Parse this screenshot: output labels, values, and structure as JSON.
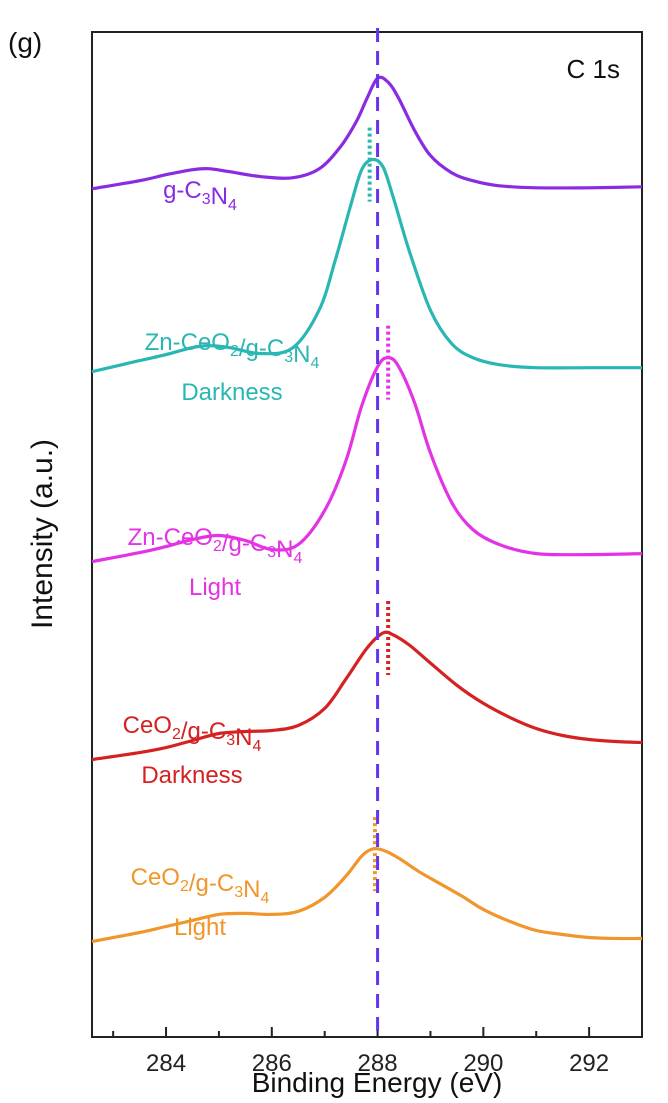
{
  "chart_data": {
    "type": "line",
    "panel_label": "(g)",
    "annotation": "C 1s",
    "xlabel": "Binding Energy (eV)",
    "ylabel": "Intensity (a.u.)",
    "xlim": [
      282.6,
      293.0
    ],
    "ylim": [
      0,
      100
    ],
    "xticks": [
      284,
      286,
      288,
      290,
      292
    ],
    "reference_line": {
      "x": 288.0,
      "color": "#6633ee",
      "style": "dashed"
    },
    "series": [
      {
        "name": "g-C3N4",
        "label_main": "g-C",
        "label_sub1": "3",
        "label_mid": "N",
        "label_sub2": "4",
        "label_line2": "",
        "color": "#8a2be2",
        "peak_marker": 288.0,
        "x": [
          282.6,
          283.5,
          284.0,
          284.5,
          284.8,
          285.2,
          285.8,
          286.4,
          286.9,
          287.3,
          287.6,
          287.8,
          288.0,
          288.2,
          288.4,
          288.7,
          289.0,
          289.4,
          289.8,
          290.3,
          291.0,
          292.0,
          293.0
        ],
        "y": [
          84.4,
          85.2,
          85.8,
          86.3,
          86.4,
          86.1,
          85.6,
          85.5,
          86.4,
          88.6,
          91.1,
          93.4,
          95.4,
          95.0,
          93.4,
          90.2,
          87.7,
          86.0,
          85.2,
          84.7,
          84.5,
          84.5,
          84.6
        ]
      },
      {
        "name": "Zn-CeO2/g-C3N4 Darkness",
        "label_main": "Zn-CeO",
        "label_sub1": "2",
        "label_mid": "/g-C",
        "label_sub2": "3",
        "label_tail": "N",
        "label_sub3": "4",
        "label_line2": "Darkness",
        "color": "#2ab7b3",
        "peak_marker": 287.85,
        "x": [
          282.6,
          283.5,
          284.0,
          284.5,
          284.8,
          285.2,
          285.8,
          286.4,
          286.9,
          287.2,
          287.5,
          287.7,
          287.9,
          288.1,
          288.3,
          288.6,
          289.0,
          289.4,
          289.8,
          290.3,
          291.0,
          292.0,
          293.0
        ],
        "y": [
          66.2,
          67.3,
          67.9,
          68.6,
          68.8,
          68.6,
          68.0,
          68.6,
          72.4,
          77.3,
          82.9,
          86.3,
          87.3,
          86.6,
          83.5,
          78.2,
          72.3,
          69.0,
          67.6,
          66.9,
          66.6,
          66.6,
          66.6
        ]
      },
      {
        "name": "Zn-CeO2/g-C3N4 Light",
        "label_main": "Zn-CeO",
        "label_sub1": "2",
        "label_mid": "/g-C",
        "label_sub2": "3",
        "label_tail": "N",
        "label_sub3": "4",
        "label_line2": "Light",
        "color": "#e433e4",
        "peak_marker": 288.2,
        "x": [
          282.6,
          283.5,
          284.0,
          284.5,
          285.0,
          285.5,
          286.0,
          286.5,
          287.0,
          287.4,
          287.7,
          288.0,
          288.2,
          288.4,
          288.7,
          289.0,
          289.4,
          289.8,
          290.3,
          291.0,
          292.0,
          293.0
        ],
        "y": [
          47.3,
          48.2,
          48.8,
          49.5,
          49.9,
          49.4,
          48.5,
          49.0,
          52.4,
          57.3,
          62.8,
          66.7,
          67.6,
          66.7,
          63.1,
          58.1,
          53.2,
          50.5,
          49.0,
          48.1,
          48.0,
          48.1
        ]
      },
      {
        "name": "CeO2/g-C3N4 Darkness",
        "label_main": "CeO",
        "label_sub1": "2",
        "label_mid": "/g-C",
        "label_sub2": "3",
        "label_tail": "N",
        "label_sub3": "4",
        "label_line2": "Darkness",
        "color": "#d42222",
        "peak_marker": 288.2,
        "x": [
          282.6,
          283.5,
          284.0,
          284.5,
          285.0,
          285.5,
          286.0,
          286.5,
          287.0,
          287.4,
          287.8,
          288.1,
          288.3,
          288.6,
          289.0,
          289.5,
          290.0,
          290.5,
          291.0,
          291.5,
          292.0,
          292.5,
          293.0
        ],
        "y": [
          27.6,
          28.3,
          28.8,
          29.5,
          30.2,
          30.4,
          30.5,
          31.0,
          32.7,
          35.6,
          38.7,
          40.2,
          40.0,
          39.0,
          37.2,
          35.0,
          33.2,
          31.8,
          30.7,
          30.0,
          29.6,
          29.4,
          29.3
        ]
      },
      {
        "name": "CeO2/g-C3N4 Light",
        "label_main": "CeO",
        "label_sub1": "2",
        "label_mid": "/g-C",
        "label_sub2": "3",
        "label_tail": "N",
        "label_sub3": "4",
        "label_line2": "Light",
        "color": "#f0962a",
        "peak_marker": 287.95,
        "x": [
          282.6,
          283.5,
          284.0,
          284.5,
          285.0,
          285.5,
          286.0,
          286.5,
          287.0,
          287.4,
          287.7,
          287.9,
          288.1,
          288.4,
          288.8,
          289.2,
          289.6,
          290.0,
          290.5,
          291.0,
          291.5,
          292.0,
          292.5,
          293.0
        ],
        "y": [
          9.5,
          10.4,
          11.0,
          11.6,
          12.2,
          12.3,
          12.2,
          12.5,
          13.9,
          16.0,
          18.0,
          18.7,
          18.6,
          17.8,
          16.4,
          15.2,
          14.0,
          12.7,
          11.5,
          10.6,
          10.2,
          9.9,
          9.8,
          9.8
        ]
      }
    ]
  }
}
